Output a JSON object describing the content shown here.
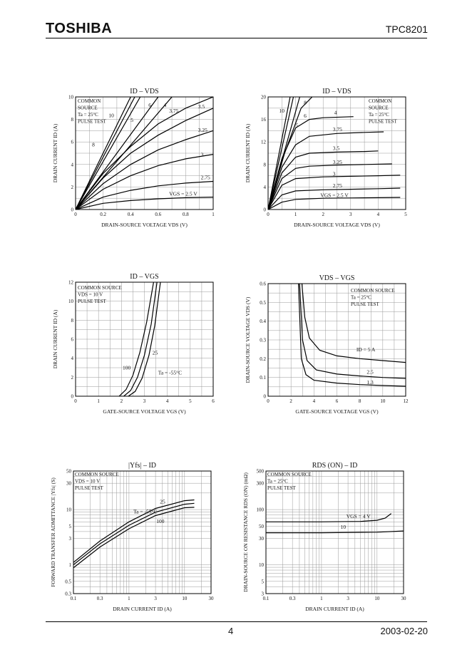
{
  "header": {
    "logo": "TOSHIBA",
    "part_number": "TPC8201"
  },
  "footer": {
    "page": "4",
    "date": "2003-02-20"
  },
  "chart_data": [
    {
      "id": "c1",
      "type": "line",
      "title": "ID – VDS",
      "xlabel": "DRAIN-SOURCE VOLTAGE   VDS   (V)",
      "ylabel": "DRAIN CURRENT   ID   (A)",
      "xlim": [
        0,
        1
      ],
      "ylim": [
        0,
        10
      ],
      "xticks": [
        "0",
        "0.2",
        "0.4",
        "0.6",
        "0.8",
        "1"
      ],
      "yticks": [
        "0",
        "2",
        "4",
        "6",
        "8",
        "10"
      ],
      "conditions": [
        "COMMON",
        "SOURCE",
        "Ta = 25°C",
        "PULSE TEST"
      ],
      "series": [
        {
          "name": "10",
          "x": [
            0,
            0.4
          ],
          "y": [
            0,
            10
          ]
        },
        {
          "name": "8",
          "x": [
            0,
            0.43
          ],
          "y": [
            0,
            10
          ]
        },
        {
          "name": "6",
          "x": [
            0,
            0.47
          ],
          "y": [
            0,
            10
          ]
        },
        {
          "name": "5",
          "x": [
            0,
            0.6
          ],
          "y": [
            0,
            10
          ]
        },
        {
          "name": "4",
          "x": [
            0,
            0.7
          ],
          "y": [
            0,
            10
          ]
        },
        {
          "name": "3.75",
          "x": [
            0,
            0.2,
            0.4,
            0.6,
            0.8,
            1
          ],
          "y": [
            0,
            3.2,
            5.6,
            7.6,
            9.0,
            10
          ]
        },
        {
          "name": "3.5",
          "x": [
            0,
            0.2,
            0.4,
            0.6,
            0.8,
            1
          ],
          "y": [
            0,
            2.8,
            5.0,
            6.6,
            7.9,
            9.0
          ]
        },
        {
          "name": "3.25",
          "x": [
            0,
            0.2,
            0.4,
            0.6,
            0.8,
            1
          ],
          "y": [
            0,
            2.3,
            4.0,
            5.3,
            6.2,
            7.0
          ]
        },
        {
          "name": "3",
          "x": [
            0,
            0.2,
            0.4,
            0.6,
            0.8,
            1
          ],
          "y": [
            0,
            1.8,
            3.0,
            3.9,
            4.5,
            4.9
          ]
        },
        {
          "name": "2.75",
          "x": [
            0,
            0.2,
            0.4,
            0.6,
            0.8,
            1
          ],
          "y": [
            0,
            1.1,
            1.7,
            2.1,
            2.35,
            2.5
          ]
        },
        {
          "name": "VGS = 2.5 V",
          "x": [
            0,
            0.2,
            0.4,
            0.6,
            0.8,
            1
          ],
          "y": [
            0,
            0.55,
            0.8,
            0.95,
            1.05,
            1.1
          ]
        }
      ]
    },
    {
      "id": "c2",
      "type": "line",
      "title": "ID – VDS",
      "xlabel": "DRAIN-SOURCE VOLTAGE   VDS   (V)",
      "ylabel": "DRAIN CURRENT   ID   (A)",
      "xlim": [
        0,
        5
      ],
      "ylim": [
        0,
        20
      ],
      "xticks": [
        "0",
        "1",
        "2",
        "3",
        "4",
        "5"
      ],
      "yticks": [
        "0",
        "4",
        "8",
        "12",
        "16",
        "20"
      ],
      "conditions": [
        "COMMON",
        "SOURCE",
        "Ta = 25°C",
        "PULSE TEST"
      ],
      "series": [
        {
          "name": "10",
          "x": [
            0,
            0.8
          ],
          "y": [
            0,
            20
          ]
        },
        {
          "name": "8",
          "x": [
            0,
            0.92
          ],
          "y": [
            0,
            20
          ]
        },
        {
          "name": "6",
          "x": [
            0,
            1.15
          ],
          "y": [
            0,
            20
          ]
        },
        {
          "name": "5",
          "x": [
            0,
            0.6,
            1.2,
            1.6
          ],
          "y": [
            0,
            10,
            18.0,
            20
          ]
        },
        {
          "name": "4",
          "x": [
            0,
            0.5,
            1.0,
            1.5,
            2,
            3.1
          ],
          "y": [
            0,
            9,
            14.5,
            16.0,
            16.3,
            16.5
          ]
        },
        {
          "name": "3.75",
          "x": [
            0,
            0.5,
            1.0,
            1.5,
            2.5,
            3.5,
            4.2
          ],
          "y": [
            0,
            7.5,
            11.5,
            13.0,
            13.5,
            13.7,
            13.8
          ]
        },
        {
          "name": "3.5",
          "x": [
            0,
            0.5,
            1.0,
            1.5,
            2.5,
            3.5,
            4.0
          ],
          "y": [
            0,
            6.5,
            9.3,
            10.0,
            10.2,
            10.3,
            10.4
          ]
        },
        {
          "name": "3.25",
          "x": [
            0,
            0.5,
            1.0,
            1.5,
            2.5,
            3.5,
            4.5
          ],
          "y": [
            0,
            5.5,
            7.3,
            7.7,
            7.9,
            8.0,
            8.1
          ]
        },
        {
          "name": "3",
          "x": [
            0,
            0.5,
            1.0,
            2.0,
            3.0,
            4.0,
            4.8
          ],
          "y": [
            0,
            4.3,
            5.5,
            5.8,
            5.9,
            6.0,
            6.1
          ]
        },
        {
          "name": "2.75",
          "x": [
            0,
            0.5,
            1.0,
            2.0,
            3.0,
            4.0,
            4.8
          ],
          "y": [
            0,
            2.6,
            3.3,
            3.5,
            3.6,
            3.7,
            3.8
          ]
        },
        {
          "name": "VGS = 2.5 V",
          "x": [
            0,
            0.5,
            1.0,
            2.0,
            3.0,
            4.0,
            4.8
          ],
          "y": [
            0,
            1.3,
            1.8,
            2.0,
            2.05,
            2.1,
            2.15
          ]
        }
      ]
    },
    {
      "id": "c3",
      "type": "line",
      "title": "ID – VGS",
      "xlabel": "GATE-SOURCE VOLTAGE   VGS   (V)",
      "ylabel": "DRAIN CURRENT   ID   (A)",
      "xlim": [
        0,
        6
      ],
      "ylim": [
        0,
        12
      ],
      "xticks": [
        "0",
        "1",
        "2",
        "3",
        "4",
        "5",
        "6"
      ],
      "yticks": [
        "0",
        "2",
        "4",
        "6",
        "8",
        "10",
        "12"
      ],
      "conditions": [
        "COMMON SOURCE",
        "VDS = 10 V",
        "PULSE TEST"
      ],
      "series": [
        {
          "name": "100",
          "x": [
            1.9,
            2.2,
            2.5,
            2.8,
            3.1,
            3.4
          ],
          "y": [
            0,
            0.7,
            2.2,
            4.6,
            7.8,
            12
          ]
        },
        {
          "name": "25",
          "x": [
            2.1,
            2.4,
            2.7,
            3.0,
            3.3,
            3.55
          ],
          "y": [
            0,
            0.6,
            2.0,
            4.3,
            7.6,
            12
          ]
        },
        {
          "name": "Ta = -55°C",
          "x": [
            2.3,
            2.6,
            2.9,
            3.2,
            3.45,
            3.7
          ],
          "y": [
            0,
            0.5,
            1.9,
            4.3,
            7.4,
            12
          ]
        }
      ]
    },
    {
      "id": "c4",
      "type": "line",
      "title": "VDS – VGS",
      "xlabel": "GATE-SOURCE VOLTAGE   VGS   (V)",
      "ylabel": "DRAIN-SOURCE VOLTAGE   VDS   (V)",
      "xlim": [
        0,
        12
      ],
      "ylim": [
        0,
        0.6
      ],
      "xticks": [
        "0",
        "2",
        "4",
        "6",
        "8",
        "10",
        "12"
      ],
      "yticks": [
        "0",
        "0.1",
        "0.2",
        "0.3",
        "0.4",
        "0.5",
        "0.6"
      ],
      "conditions": [
        "COMMON SOURCE",
        "Ta = 25°C",
        "PULSE TEST"
      ],
      "series": [
        {
          "name": "ID = 5 A",
          "x": [
            2.95,
            3.2,
            3.6,
            4.5,
            6,
            8,
            10,
            12
          ],
          "y": [
            0.6,
            0.42,
            0.31,
            0.245,
            0.215,
            0.2,
            0.19,
            0.18
          ]
        },
        {
          "name": "2.5",
          "x": [
            2.75,
            3.0,
            3.4,
            4.2,
            6,
            8,
            10,
            12
          ],
          "y": [
            0.6,
            0.3,
            0.19,
            0.14,
            0.118,
            0.108,
            0.1,
            0.095
          ]
        },
        {
          "name": "1.3",
          "x": [
            2.65,
            2.9,
            3.3,
            4,
            6,
            8,
            10,
            12
          ],
          "y": [
            0.6,
            0.2,
            0.115,
            0.085,
            0.07,
            0.062,
            0.057,
            0.053
          ]
        }
      ]
    },
    {
      "id": "c5",
      "type": "line",
      "title": "|Yfs| – ID",
      "xlabel": "DRAIN CURRENT   ID   (A)",
      "ylabel": "FORWARD TRANSFER ADMITTANCE |Yfs| (S)",
      "xscale": "log",
      "yscale": "log",
      "xlim": [
        0.1,
        30
      ],
      "ylim": [
        0.3,
        50
      ],
      "xticks": [
        "0.1",
        "0.3",
        "1",
        "3",
        "10",
        "30"
      ],
      "yticks": [
        "0.3",
        "0.5",
        "1",
        "3",
        "5",
        "10",
        "30",
        "50"
      ],
      "conditions": [
        "COMMON SOURCE",
        "VDS = 10 V",
        "PULSE TEST"
      ],
      "series": [
        {
          "name": "25",
          "x": [
            0.1,
            0.3,
            1,
            3,
            10,
            15
          ],
          "y": [
            1.1,
            2.7,
            6.0,
            10.5,
            14.5,
            15
          ]
        },
        {
          "name": "Ta = -55°C",
          "x": [
            0.1,
            0.3,
            1,
            3,
            10,
            15
          ],
          "y": [
            1.0,
            2.4,
            5.2,
            9.0,
            12.5,
            13
          ]
        },
        {
          "name": "100",
          "x": [
            0.1,
            0.3,
            1,
            3,
            10,
            15
          ],
          "y": [
            0.88,
            2.1,
            4.5,
            7.8,
            10.8,
            11
          ]
        }
      ]
    },
    {
      "id": "c6",
      "type": "line",
      "title": "RDS (ON) – ID",
      "xlabel": "DRAIN CURRENT   ID   (A)",
      "ylabel": "DRAIN-SOURCE ON RESISTANCE RDS (ON) (mΩ)",
      "xscale": "log",
      "yscale": "log",
      "xlim": [
        0.1,
        30
      ],
      "ylim": [
        3,
        500
      ],
      "xticks": [
        "0.1",
        "0.3",
        "1",
        "3",
        "10",
        "30"
      ],
      "yticks": [
        "3",
        "5",
        "10",
        "30",
        "50",
        "100",
        "300",
        "500"
      ],
      "conditions": [
        "COMMON SOURCE",
        "Ta = 25°C",
        "PULSE TEST"
      ],
      "series": [
        {
          "name": "VGS = 4 V",
          "x": [
            0.1,
            1,
            5,
            10,
            14,
            18
          ],
          "y": [
            60,
            60,
            61,
            64,
            70,
            85
          ]
        },
        {
          "name": "10",
          "x": [
            0.1,
            1,
            10,
            30
          ],
          "y": [
            38,
            38,
            39,
            41
          ]
        }
      ]
    }
  ]
}
